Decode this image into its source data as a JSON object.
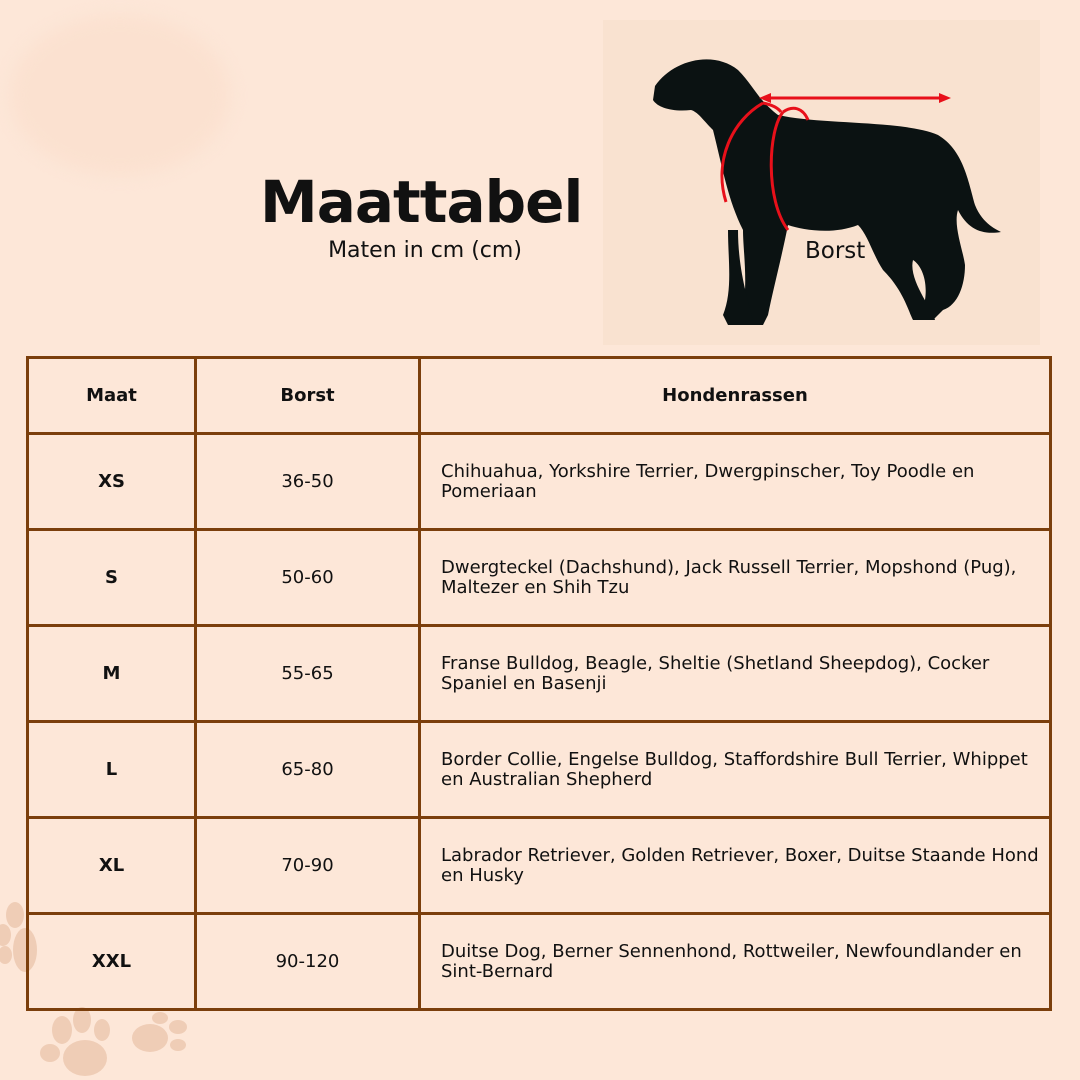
{
  "title": "Maattabel",
  "subtitle": "Maten in cm (cm)",
  "illustration": {
    "label": "Borst"
  },
  "table": {
    "headers": [
      "Maat",
      "Borst",
      "Hondenrassen"
    ],
    "rows": [
      {
        "size": "XS",
        "chest": "36-50",
        "breeds": "Chihuahua, Yorkshire Terrier, Dwergpinscher, Toy Poodle en Pomeriaan"
      },
      {
        "size": "S",
        "chest": "50-60",
        "breeds": "Dwergteckel (Dachshund), Jack Russell Terrier, Mopshond (Pug), Maltezer en Shih Tzu"
      },
      {
        "size": "M",
        "chest": "55-65",
        "breeds": "Franse Bulldog, Beagle, Sheltie (Shetland Sheepdog), Cocker Spaniel en Basenji"
      },
      {
        "size": "L",
        "chest": "65-80",
        "breeds": "Border Collie, Engelse Bulldog, Staffordshire Bull Terrier, Whippet en Australian Shepherd"
      },
      {
        "size": "XL",
        "chest": "70-90",
        "breeds": "Labrador Retriever, Golden Retriever, Boxer, Duitse Staande Hond en Husky"
      },
      {
        "size": "XXL",
        "chest": "90-120",
        "breeds": "Duitse Dog, Berner Sennenhond, Rottweiler, Newfoundlander en Sint-Bernard"
      }
    ]
  },
  "colors": {
    "background": "#fde7d8",
    "border": "#7b3f0c",
    "measure": "#e8101a"
  }
}
